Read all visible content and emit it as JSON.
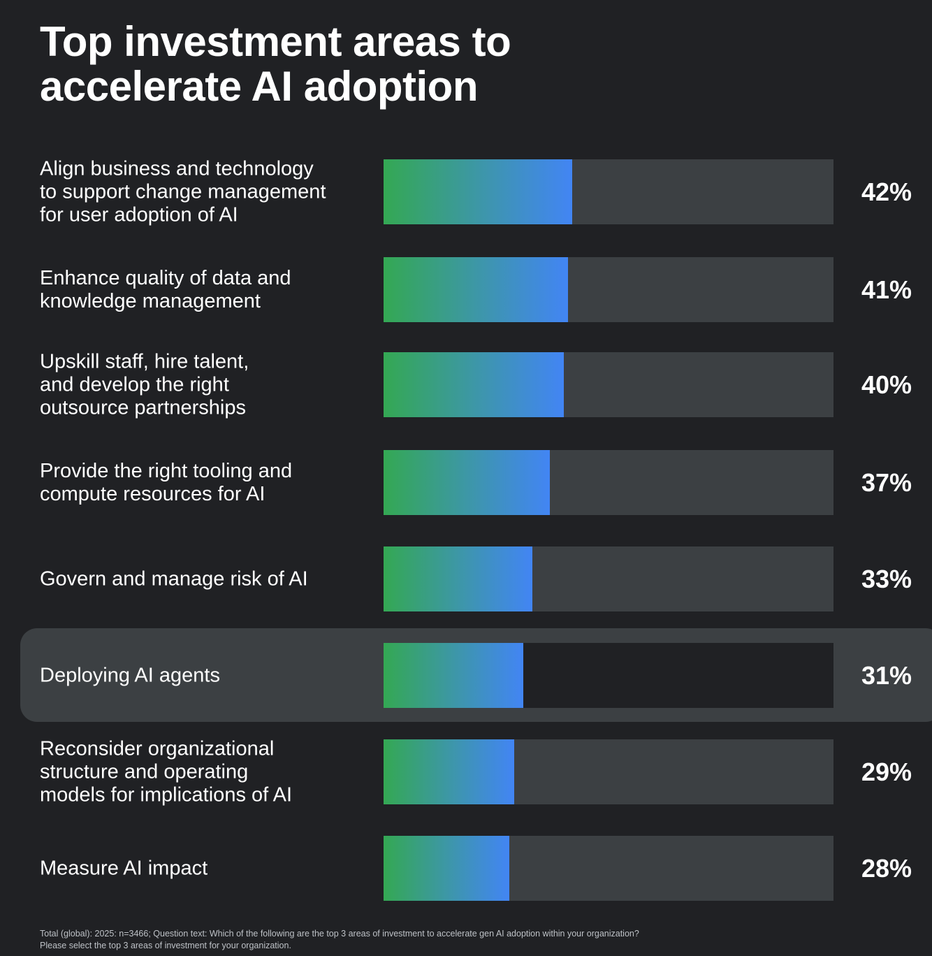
{
  "chart_data": {
    "type": "bar",
    "orientation": "horizontal",
    "title": "Top investment areas to accelerate AI adoption",
    "title_lines": [
      "Top investment areas to",
      "accelerate AI adoption"
    ],
    "value_unit": "%",
    "xlim": [
      0,
      100
    ],
    "highlighted_category": "Deploying AI agents",
    "rows": [
      {
        "category": "Align business and technology to support change management for user adoption of AI",
        "label_lines": [
          "Align business and technology",
          "to support change management",
          "for user adoption of AI"
        ],
        "value": 42,
        "value_label": "42%"
      },
      {
        "category": "Enhance quality of data and knowledge management",
        "label_lines": [
          "Enhance quality of data and",
          "knowledge management"
        ],
        "value": 41,
        "value_label": "41%"
      },
      {
        "category": "Upskill staff, hire talent, and develop the right outsource partnerships",
        "label_lines": [
          "Upskill staff, hire talent,",
          "and develop the right",
          "outsource partnerships"
        ],
        "value": 40,
        "value_label": "40%"
      },
      {
        "category": "Provide the right tooling and compute resources for AI",
        "label_lines": [
          "Provide the right tooling and",
          "compute resources for AI"
        ],
        "value": 37,
        "value_label": "37%"
      },
      {
        "category": "Govern and manage risk of AI",
        "label_lines": [
          "Govern and manage risk of AI"
        ],
        "value": 33,
        "value_label": "33%"
      },
      {
        "category": "Deploying AI agents",
        "label_lines": [
          "Deploying AI agents"
        ],
        "value": 31,
        "value_label": "31%"
      },
      {
        "category": "Reconsider organizational structure and operating models for implications of AI",
        "label_lines": [
          "Reconsider organizational",
          "structure and operating",
          "models for implications of AI"
        ],
        "value": 29,
        "value_label": "29%"
      },
      {
        "category": "Measure AI impact",
        "label_lines": [
          "Measure AI impact"
        ],
        "value": 28,
        "value_label": "28%"
      }
    ],
    "footnote_lines": [
      "Total (global): 2025: n=3466; Question text: Which of the following are the top 3 areas of investment to accelerate gen AI adoption within your organization?",
      "Please select the top 3 areas of investment for your organization."
    ]
  },
  "colors": {
    "background": "#202124",
    "track": "#3c4043",
    "highlight_band": "#3c4043",
    "gradient_start": "#34a853",
    "gradient_end": "#4285f4",
    "text": "#ffffff",
    "footnote_text": "#bdc1c6"
  }
}
